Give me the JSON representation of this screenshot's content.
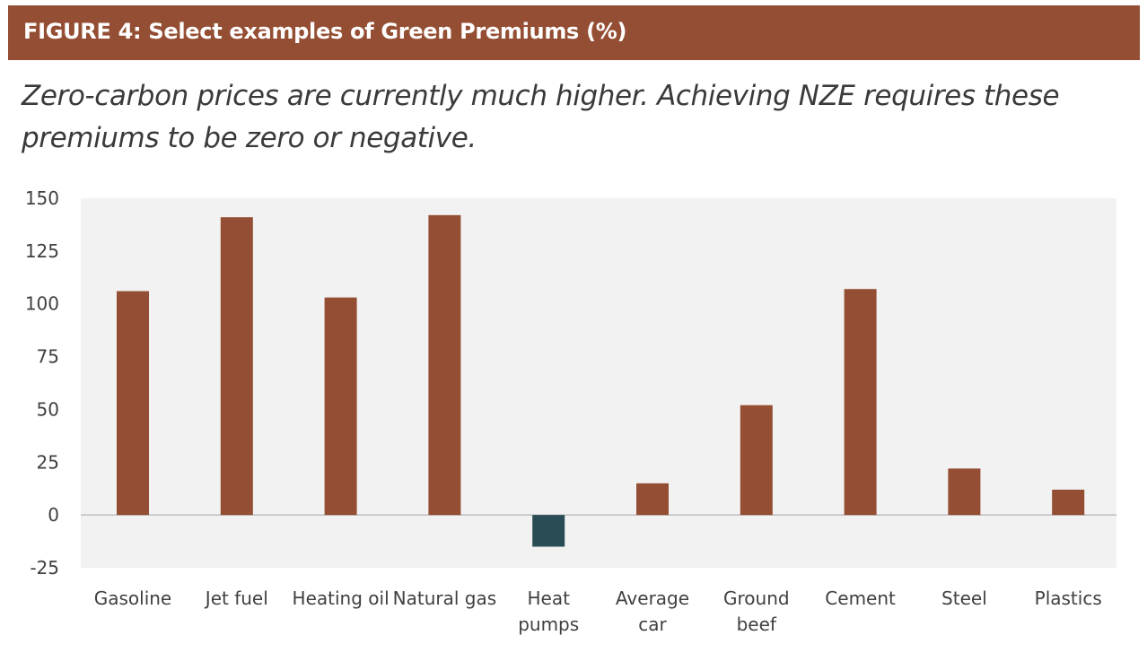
{
  "header": {
    "title": "FIGURE 4: Select examples of Green Premiums (%)",
    "subtitle": "Zero-carbon prices are currently much higher. Achieving NZE requires these premiums to be zero or negative."
  },
  "colors": {
    "banner": "#944e33",
    "positive_bar": "#944e33",
    "negative_bar": "#294c55",
    "plot_background": "#f2f2f2",
    "zero_line": "#bfbfbf"
  },
  "chart_data": {
    "type": "bar",
    "title": "Select examples of Green Premiums (%)",
    "xlabel": "",
    "ylabel": "",
    "ylim": [
      -25,
      150
    ],
    "yticks": [
      150,
      125,
      100,
      75,
      50,
      25,
      0,
      -25
    ],
    "grid": false,
    "legend": "none",
    "categories": [
      [
        "Gasoline"
      ],
      [
        "Jet fuel"
      ],
      [
        "Heating oil"
      ],
      [
        "Natural gas"
      ],
      [
        "Heat",
        "pumps"
      ],
      [
        "Average",
        "car"
      ],
      [
        "Ground",
        "beef"
      ],
      [
        "Cement"
      ],
      [
        "Steel"
      ],
      [
        "Plastics"
      ]
    ],
    "values": [
      106,
      141,
      103,
      142,
      -15,
      15,
      52,
      107,
      22,
      12
    ]
  }
}
